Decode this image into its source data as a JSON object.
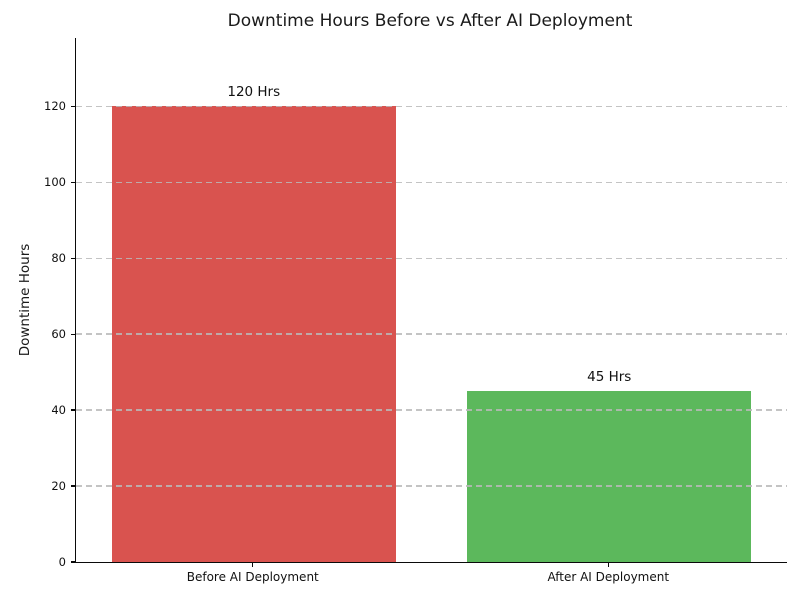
{
  "chart_data": {
    "type": "bar",
    "title": "Downtime Hours Before vs After AI Deployment",
    "xlabel": "",
    "ylabel": "Downtime Hours",
    "categories": [
      "Before AI Deployment",
      "After AI Deployment"
    ],
    "values": [
      120,
      45
    ],
    "bar_labels": [
      "120 Hrs",
      "45 Hrs"
    ],
    "bar_colors": [
      "#d9534f",
      "#5cb85c"
    ],
    "yticks": [
      0,
      20,
      40,
      60,
      80,
      100,
      120
    ],
    "ylim": [
      0,
      138
    ],
    "grid": "horizontal-dashed-over-bars",
    "grid_color": "#b9b9b9",
    "axis_color": "#0a0a0a",
    "text_color": "#1a1a1a",
    "legend": "none",
    "background_color": "#ffffff"
  }
}
